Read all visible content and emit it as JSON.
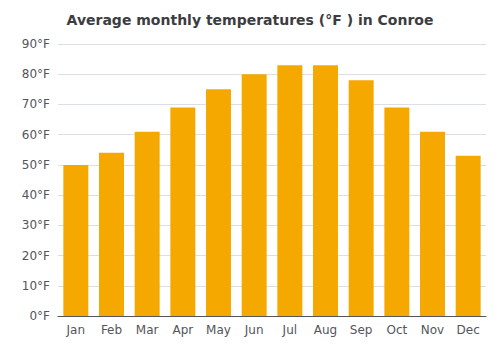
{
  "chart_data": {
    "type": "bar",
    "title": "Average monthly temperatures (°F ) in Conroe",
    "categories": [
      "Jan",
      "Feb",
      "Mar",
      "Apr",
      "May",
      "Jun",
      "Jul",
      "Aug",
      "Sep",
      "Oct",
      "Nov",
      "Dec"
    ],
    "values": [
      50,
      54,
      61,
      69,
      75,
      80,
      83,
      83,
      78,
      69,
      61,
      53
    ],
    "color": "#F5A800",
    "ylim": [
      0,
      90
    ],
    "yticks": [
      {
        "value": 0,
        "label": "0°F"
      },
      {
        "value": 10,
        "label": "10°F"
      },
      {
        "value": 20,
        "label": "20°F"
      },
      {
        "value": 30,
        "label": "30°F"
      },
      {
        "value": 40,
        "label": "40°F"
      },
      {
        "value": 50,
        "label": "50°F"
      },
      {
        "value": 60,
        "label": "60°F"
      },
      {
        "value": 70,
        "label": "70°F"
      },
      {
        "value": 80,
        "label": "80°F"
      },
      {
        "value": 90,
        "label": "90°F"
      }
    ],
    "grid": true
  }
}
